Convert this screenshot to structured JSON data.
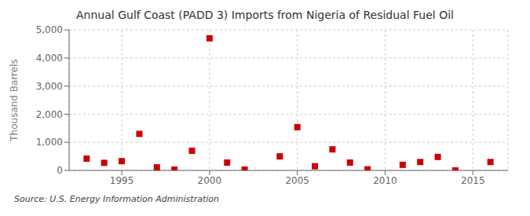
{
  "chart_data": {
    "type": "scatter",
    "title": "Annual Gulf Coast (PADD 3) Imports from Nigeria of Residual Fuel Oil",
    "ylabel": "Thousand Barrels",
    "annotations": [
      "Source: U.S. Energy Information Administration"
    ],
    "x": [
      1993,
      1994,
      1995,
      1996,
      1997,
      1998,
      1999,
      2000,
      2001,
      2002,
      2004,
      2005,
      2006,
      2007,
      2008,
      2009,
      2011,
      2012,
      2013,
      2014,
      2016
    ],
    "values": [
      420,
      270,
      330,
      1300,
      110,
      30,
      700,
      4700,
      280,
      30,
      500,
      1540,
      150,
      750,
      280,
      40,
      200,
      300,
      480,
      0,
      300
    ],
    "color": "#cc0000",
    "marker": "square",
    "xlim": [
      1992,
      2017
    ],
    "xticks": [
      1995,
      2000,
      2005,
      2010,
      2015
    ],
    "ylim": [
      0,
      5000
    ],
    "yticks": [
      0,
      {
        "value": 1000,
        "label": "1,000"
      },
      {
        "value": 2000,
        "label": "2,000"
      },
      {
        "value": 3000,
        "label": "3,000"
      },
      {
        "value": 4000,
        "label": "4,000"
      },
      {
        "value": 5000,
        "label": "5,000"
      }
    ],
    "grid": true
  }
}
